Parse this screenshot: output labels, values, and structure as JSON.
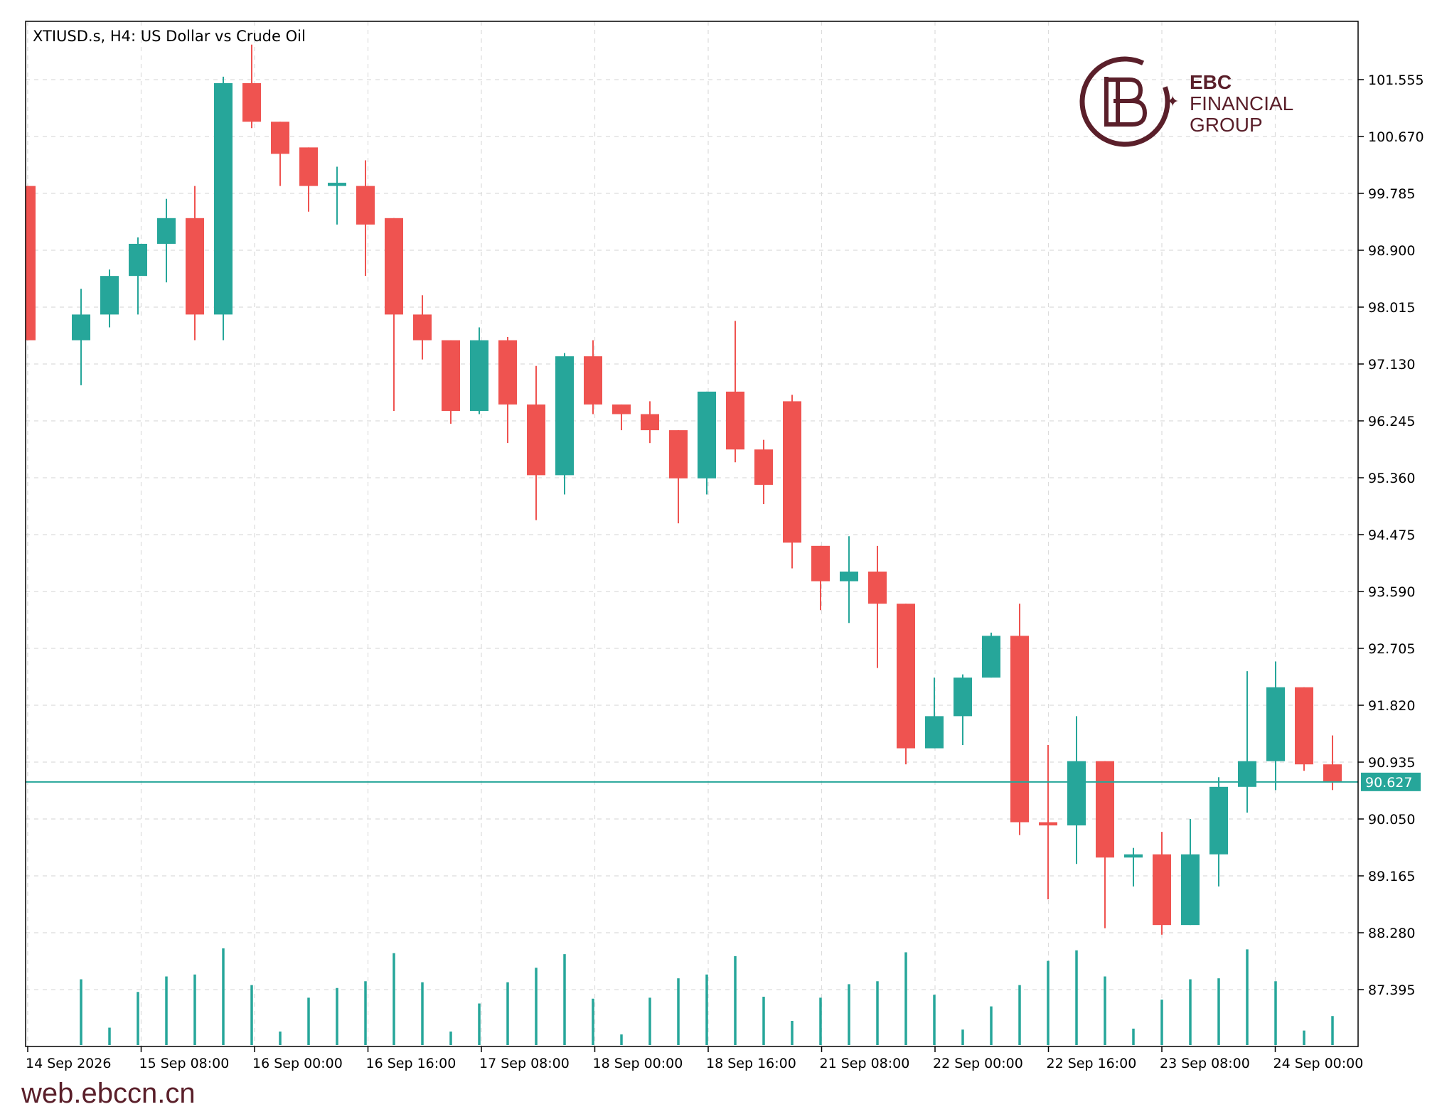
{
  "header": {
    "title": "XTIUSD.s, H4:  US Dollar vs Crude Oil"
  },
  "brand": {
    "line1": "EBC",
    "line2": "FINANCIAL",
    "line3": "GROUP",
    "color": "#5a1f2a"
  },
  "footer": {
    "site": "web.ebccn.cn"
  },
  "colors": {
    "bull": "#26a69a",
    "bear": "#ef5350",
    "grid": "#dcdcdc",
    "axis": "#000000"
  },
  "chart_data": {
    "type": "candlestick",
    "title": "XTIUSD.s, H4:  US Dollar vs Crude Oil",
    "ylim": [
      86.4,
      102.4
    ],
    "y_ticks": [
      "101.555",
      "100.670",
      "99.785",
      "98.900",
      "98.015",
      "97.130",
      "96.245",
      "95.360",
      "94.475",
      "93.590",
      "92.705",
      "91.820",
      "90.935",
      "90.050",
      "89.165",
      "88.280",
      "87.395"
    ],
    "x_tick_labels": [
      "14 Sep 2026",
      "15 Sep 08:00",
      "16 Sep 00:00",
      "16 Sep 16:00",
      "17 Sep 08:00",
      "18 Sep 00:00",
      "18 Sep 16:00",
      "21 Sep 08:00",
      "22 Sep 00:00",
      "22 Sep 16:00",
      "23 Sep 08:00",
      "24 Sep 00:00"
    ],
    "current_price": "90.627",
    "candles": [
      {
        "o": 99.9,
        "h": 99.9,
        "l": 97.5,
        "c": 97.5
      },
      {
        "o": 97.5,
        "h": 98.3,
        "l": 96.8,
        "c": 97.9
      },
      {
        "o": 97.9,
        "h": 98.6,
        "l": 97.7,
        "c": 98.5
      },
      {
        "o": 98.5,
        "h": 99.1,
        "l": 97.9,
        "c": 99.0
      },
      {
        "o": 99.0,
        "h": 99.7,
        "l": 98.4,
        "c": 99.4
      },
      {
        "o": 99.4,
        "h": 99.9,
        "l": 97.5,
        "c": 97.9
      },
      {
        "o": 97.9,
        "h": 101.6,
        "l": 97.5,
        "c": 101.5
      },
      {
        "o": 101.5,
        "h": 102.1,
        "l": 100.8,
        "c": 100.9
      },
      {
        "o": 100.9,
        "h": 100.9,
        "l": 99.9,
        "c": 100.4
      },
      {
        "o": 100.5,
        "h": 100.5,
        "l": 99.5,
        "c": 99.9
      },
      {
        "o": 99.9,
        "h": 100.2,
        "l": 99.3,
        "c": 99.95
      },
      {
        "o": 99.9,
        "h": 100.3,
        "l": 98.5,
        "c": 99.3
      },
      {
        "o": 99.4,
        "h": 99.4,
        "l": 96.4,
        "c": 97.9
      },
      {
        "o": 97.9,
        "h": 98.2,
        "l": 97.2,
        "c": 97.5
      },
      {
        "o": 97.5,
        "h": 97.5,
        "l": 96.2,
        "c": 96.4
      },
      {
        "o": 96.4,
        "h": 97.7,
        "l": 96.35,
        "c": 97.5
      },
      {
        "o": 97.5,
        "h": 97.55,
        "l": 95.9,
        "c": 96.5
      },
      {
        "o": 96.5,
        "h": 97.1,
        "l": 94.7,
        "c": 95.4
      },
      {
        "o": 95.4,
        "h": 97.3,
        "l": 95.1,
        "c": 97.25
      },
      {
        "o": 97.25,
        "h": 97.5,
        "l": 96.35,
        "c": 96.5
      },
      {
        "o": 96.5,
        "h": 96.5,
        "l": 96.1,
        "c": 96.35
      },
      {
        "o": 96.35,
        "h": 96.55,
        "l": 95.9,
        "c": 96.1
      },
      {
        "o": 96.1,
        "h": 96.1,
        "l": 94.65,
        "c": 95.35
      },
      {
        "o": 95.35,
        "h": 96.7,
        "l": 95.1,
        "c": 96.7
      },
      {
        "o": 96.7,
        "h": 97.8,
        "l": 95.6,
        "c": 95.8
      },
      {
        "o": 95.8,
        "h": 95.95,
        "l": 94.95,
        "c": 95.25
      },
      {
        "o": 96.55,
        "h": 96.65,
        "l": 93.95,
        "c": 94.35
      },
      {
        "o": 94.3,
        "h": 94.3,
        "l": 93.3,
        "c": 93.75
      },
      {
        "o": 93.75,
        "h": 94.45,
        "l": 93.1,
        "c": 93.9
      },
      {
        "o": 93.9,
        "h": 94.3,
        "l": 92.4,
        "c": 93.4
      },
      {
        "o": 93.4,
        "h": 93.4,
        "l": 90.9,
        "c": 91.15
      },
      {
        "o": 91.15,
        "h": 92.25,
        "l": 91.15,
        "c": 91.65
      },
      {
        "o": 91.65,
        "h": 92.3,
        "l": 91.2,
        "c": 92.25
      },
      {
        "o": 92.25,
        "h": 92.95,
        "l": 92.25,
        "c": 92.9
      },
      {
        "o": 92.9,
        "h": 93.4,
        "l": 89.8,
        "c": 90.0
      },
      {
        "o": 90.0,
        "h": 91.2,
        "l": 88.8,
        "c": 89.95
      },
      {
        "o": 89.95,
        "h": 91.65,
        "l": 89.35,
        "c": 90.95
      },
      {
        "o": 90.95,
        "h": 90.95,
        "l": 88.35,
        "c": 89.45
      },
      {
        "o": 89.45,
        "h": 89.6,
        "l": 89.0,
        "c": 89.5
      },
      {
        "o": 89.5,
        "h": 89.85,
        "l": 88.25,
        "c": 88.4
      },
      {
        "o": 88.4,
        "h": 90.05,
        "l": 88.4,
        "c": 89.5
      },
      {
        "o": 89.5,
        "h": 90.7,
        "l": 89.0,
        "c": 90.55
      },
      {
        "o": 90.55,
        "h": 92.35,
        "l": 90.15,
        "c": 90.95
      },
      {
        "o": 90.95,
        "h": 92.5,
        "l": 90.5,
        "c": 92.1
      },
      {
        "o": 92.1,
        "h": 92.1,
        "l": 90.8,
        "c": 90.9
      },
      {
        "o": 90.9,
        "h": 91.35,
        "l": 90.5,
        "c": 90.62
      }
    ],
    "volume": [
      0,
      0.68,
      0.18,
      0.55,
      0.71,
      0.73,
      1.0,
      0.62,
      0.14,
      0.49,
      0.59,
      0.66,
      0.95,
      0.65,
      0.14,
      0.43,
      0.65,
      0.8,
      0.94,
      0.48,
      0.11,
      0.49,
      0.69,
      0.73,
      0.92,
      0.5,
      0.25,
      0.49,
      0.63,
      0.66,
      0.96,
      0.52,
      0.16,
      0.4,
      0.62,
      0.87,
      0.98,
      0.71,
      0.17,
      0.47,
      0.68,
      0.69,
      0.99,
      0.66,
      0.15,
      0.3
    ]
  }
}
